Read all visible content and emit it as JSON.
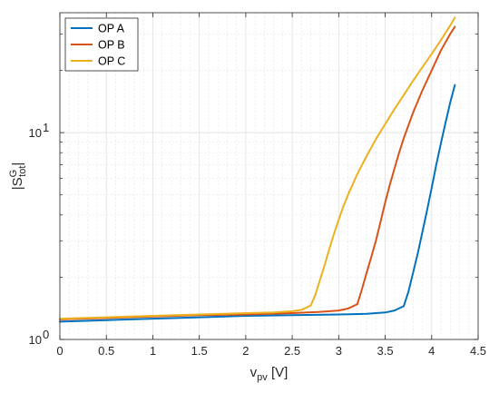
{
  "chart_data": {
    "type": "line",
    "title": "",
    "xlabel": {
      "base": "v",
      "sub": "pv",
      "unit": " [V]"
    },
    "ylabel": {
      "base": "|S",
      "sup": "G",
      "sub": "tot",
      "close": "|"
    },
    "xlim": [
      0,
      4.5
    ],
    "ylim": [
      1,
      38
    ],
    "yscale": "log",
    "grid": true,
    "minor_grid": true,
    "legend_position": "top-left",
    "x_ticks": [
      "0",
      "0.5",
      "1",
      "1.5",
      "2",
      "2.5",
      "3",
      "3.5",
      "4",
      "4.5"
    ],
    "x_tick_values": [
      0,
      0.5,
      1,
      1.5,
      2,
      2.5,
      3,
      3.5,
      4,
      4.5
    ],
    "y_ticks": [
      {
        "base": "10",
        "exp": "0",
        "value": 1
      },
      {
        "base": "10",
        "exp": "1",
        "value": 10
      }
    ],
    "series": [
      {
        "name": "OP A",
        "color": "#0072BD",
        "x": [
          0,
          0.5,
          1,
          1.5,
          2,
          2.5,
          3,
          3.3,
          3.5,
          3.6,
          3.7,
          3.75,
          3.8,
          3.85,
          3.9,
          3.95,
          4.0,
          4.05,
          4.1,
          4.15,
          4.2,
          4.25
        ],
        "y": [
          1.22,
          1.24,
          1.26,
          1.28,
          1.3,
          1.31,
          1.32,
          1.33,
          1.35,
          1.38,
          1.45,
          1.7,
          2.1,
          2.6,
          3.3,
          4.2,
          5.4,
          7.0,
          8.9,
          11.2,
          14.0,
          17.0
        ]
      },
      {
        "name": "OP B",
        "color": "#D95319",
        "x": [
          0,
          0.5,
          1,
          1.5,
          2,
          2.5,
          2.8,
          3.0,
          3.1,
          3.2,
          3.25,
          3.3,
          3.35,
          3.4,
          3.45,
          3.5,
          3.55,
          3.6,
          3.65,
          3.7,
          3.8,
          3.9,
          4.0,
          4.1,
          4.2,
          4.25
        ],
        "y": [
          1.25,
          1.27,
          1.29,
          1.31,
          1.32,
          1.34,
          1.36,
          1.38,
          1.41,
          1.48,
          1.75,
          2.1,
          2.5,
          3.0,
          3.7,
          4.6,
          5.6,
          6.7,
          8.0,
          9.4,
          12.5,
          16.0,
          20.0,
          25.0,
          30.0,
          32.5
        ]
      },
      {
        "name": "OP C",
        "color": "#EDB120",
        "x": [
          0,
          0.5,
          1,
          1.5,
          2,
          2.3,
          2.5,
          2.6,
          2.7,
          2.75,
          2.8,
          2.85,
          2.9,
          2.95,
          3.0,
          3.05,
          3.1,
          3.2,
          3.3,
          3.4,
          3.5,
          3.6,
          3.7,
          3.8,
          3.9,
          4.0,
          4.1,
          4.2,
          4.25
        ],
        "y": [
          1.26,
          1.28,
          1.3,
          1.32,
          1.34,
          1.35,
          1.37,
          1.39,
          1.46,
          1.65,
          1.95,
          2.3,
          2.75,
          3.25,
          3.8,
          4.4,
          5.0,
          6.3,
          7.7,
          9.3,
          11.0,
          13.0,
          15.2,
          17.8,
          20.7,
          24.0,
          28.0,
          33.0,
          36.0
        ]
      }
    ]
  }
}
